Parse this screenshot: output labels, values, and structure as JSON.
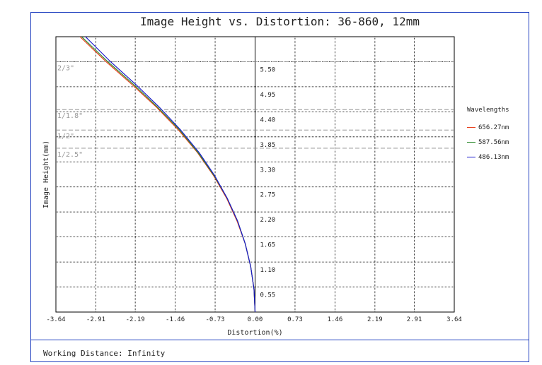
{
  "footer": {
    "text": "Working Distance: Infinity"
  },
  "colors": {
    "frame": "#1f3fbf",
    "red": "#e8401c",
    "green": "#2e8b2e",
    "blue": "#1a1acc"
  },
  "chart_data": {
    "type": "line",
    "title": "Image Height vs. Distortion: 36-860, 12mm",
    "xlabel": "Distortion(%)",
    "ylabel": "Image Height(mm)",
    "xlim": [
      -3.64,
      3.64
    ],
    "ylim": [
      0,
      6.05
    ],
    "x_ticks": [
      "-3.64",
      "-2.91",
      "-2.19",
      "-1.46",
      "-0.73",
      "0.00",
      "0.73",
      "1.46",
      "2.19",
      "2.91",
      "3.64"
    ],
    "y_ticks": [
      "0.55",
      "1.10",
      "1.65",
      "2.20",
      "2.75",
      "3.30",
      "3.85",
      "4.40",
      "4.95",
      "5.50"
    ],
    "grid": true,
    "sensor_lines": [
      {
        "label": "2/3\"",
        "y": 5.5
      },
      {
        "label": "1/1.8\"",
        "y": 4.45
      },
      {
        "label": "1/2\"",
        "y": 4.0
      },
      {
        "label": "1/2.5\"",
        "y": 3.6
      }
    ],
    "legend_title": "Wavelengths",
    "legend_position": "right",
    "series": [
      {
        "name": "656.27nm",
        "color": "#e8401c",
        "x": [
          0,
          -0.02,
          -0.08,
          -0.18,
          -0.33,
          -0.52,
          -0.76,
          -1.05,
          -1.4,
          -1.8,
          -2.25,
          -2.72,
          -3.2
        ],
        "y": [
          0,
          0.5,
          1.0,
          1.5,
          2.0,
          2.5,
          3.0,
          3.5,
          4.0,
          4.5,
          5.0,
          5.5,
          6.05
        ]
      },
      {
        "name": "587.56nm",
        "color": "#2e8b2e",
        "x": [
          0,
          -0.02,
          -0.08,
          -0.18,
          -0.32,
          -0.51,
          -0.75,
          -1.04,
          -1.38,
          -1.78,
          -2.22,
          -2.69,
          -3.17
        ],
        "y": [
          0,
          0.5,
          1.0,
          1.5,
          2.0,
          2.5,
          3.0,
          3.5,
          4.0,
          4.5,
          5.0,
          5.5,
          6.05
        ]
      },
      {
        "name": "486.13nm",
        "color": "#1a1acc",
        "x": [
          0,
          -0.02,
          -0.08,
          -0.18,
          -0.32,
          -0.51,
          -0.74,
          -1.02,
          -1.36,
          -1.75,
          -2.18,
          -2.64,
          -3.1
        ],
        "y": [
          0,
          0.5,
          1.0,
          1.5,
          2.0,
          2.5,
          3.0,
          3.5,
          4.0,
          4.5,
          5.0,
          5.5,
          6.05
        ]
      }
    ]
  }
}
